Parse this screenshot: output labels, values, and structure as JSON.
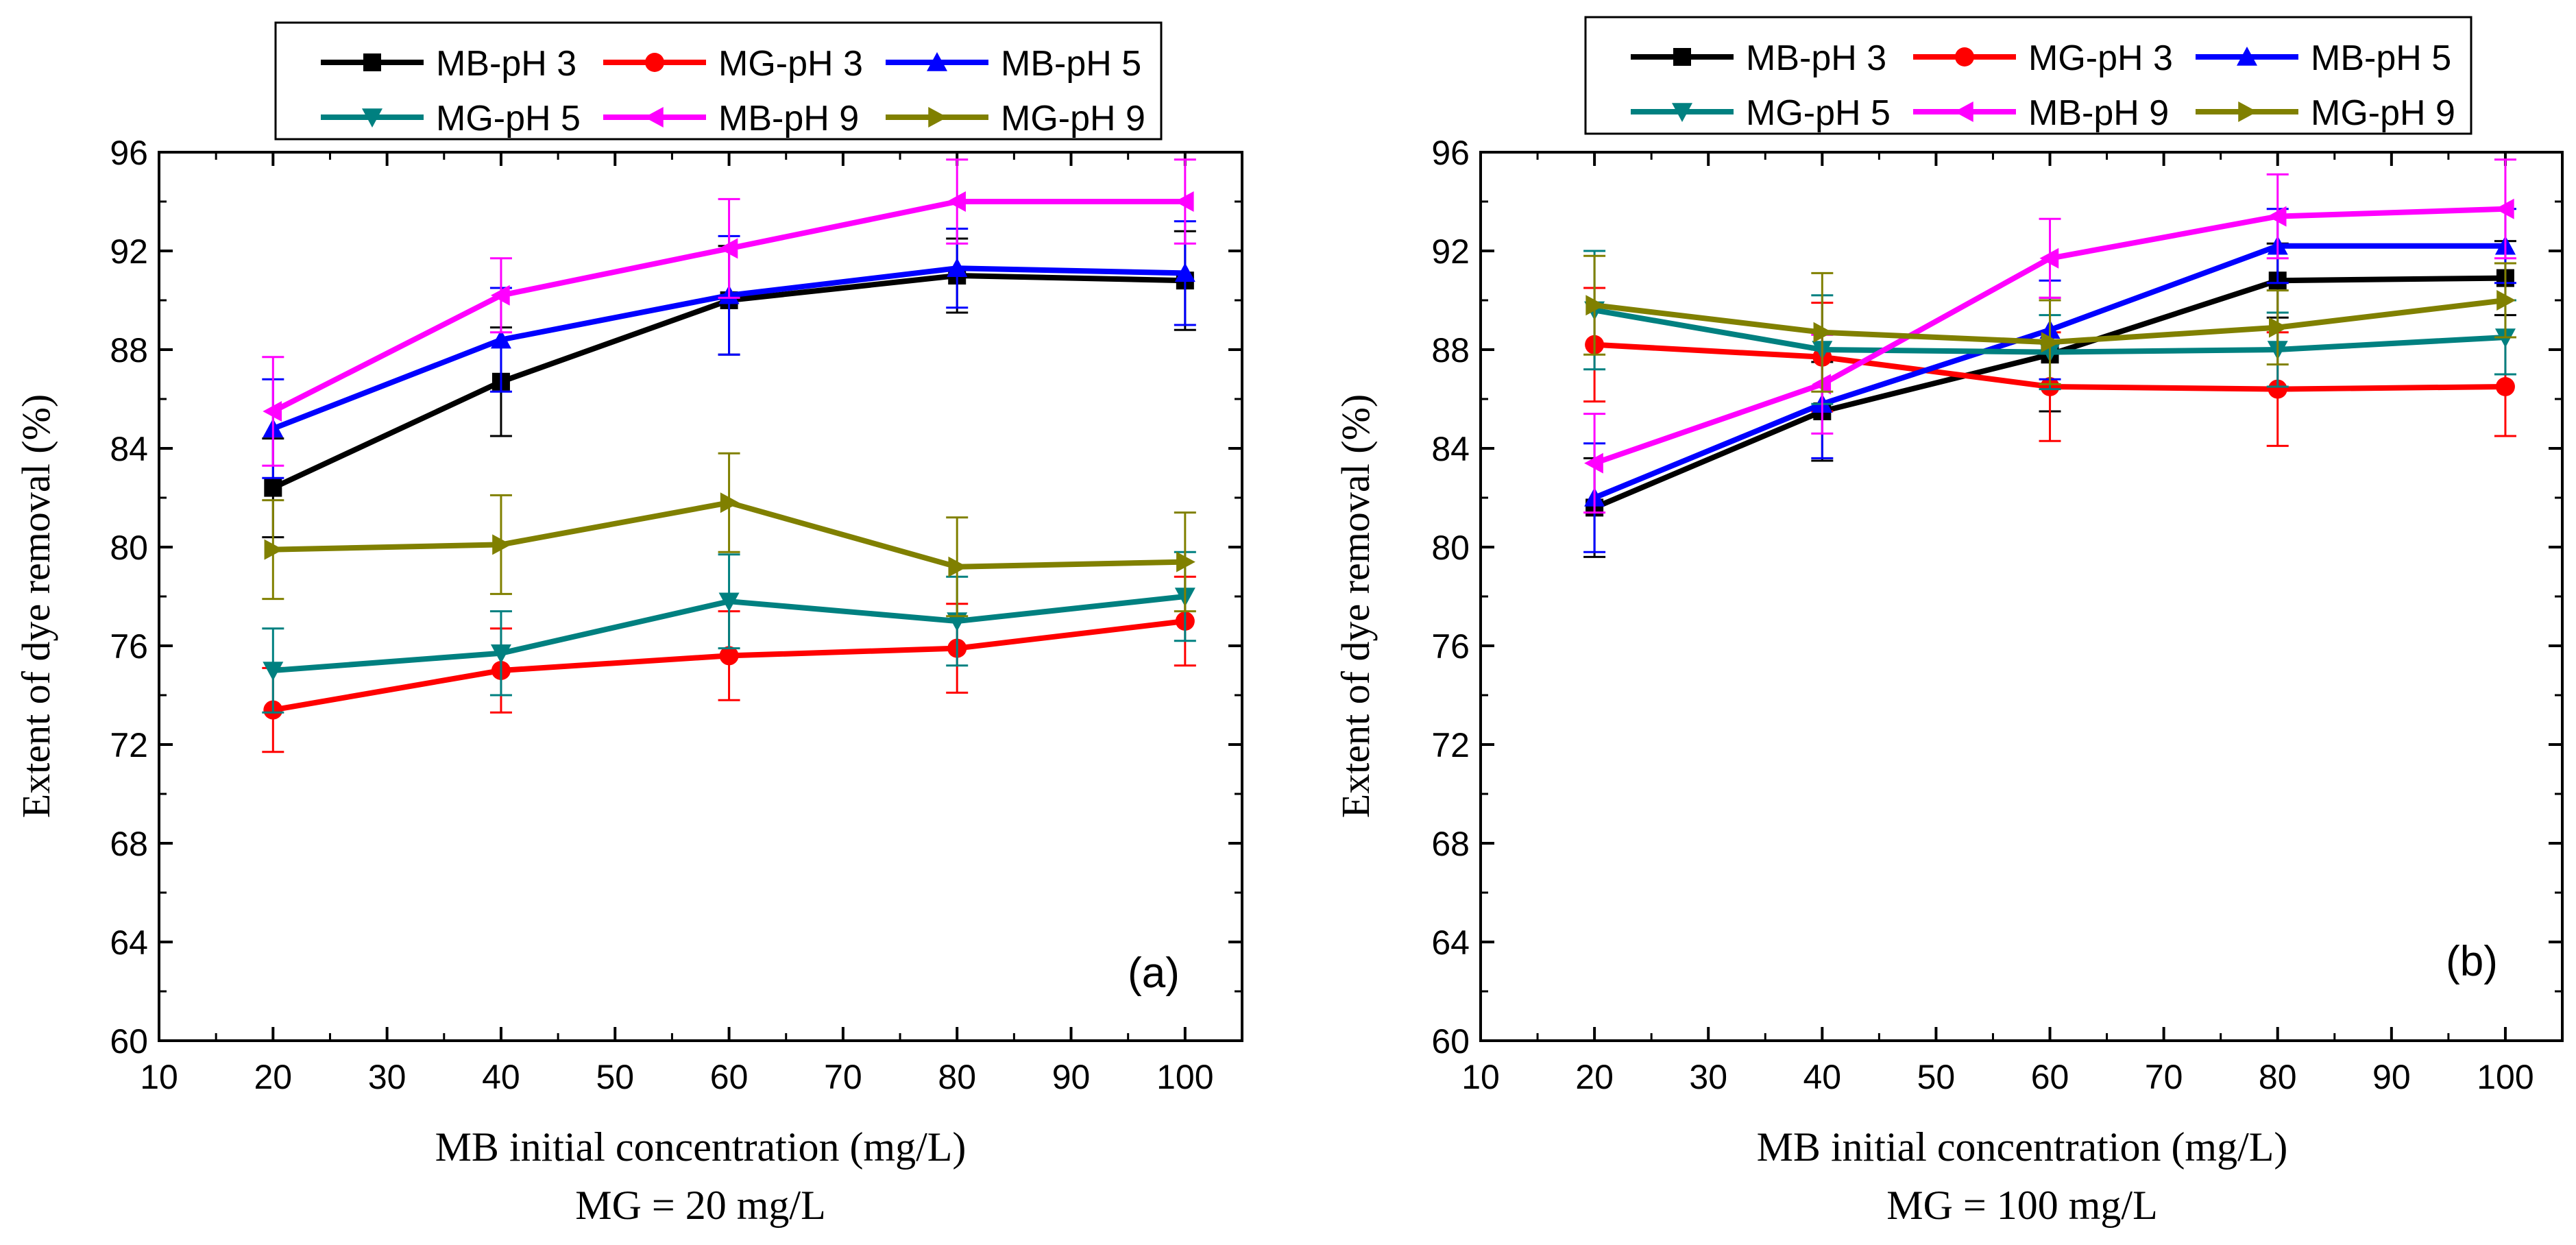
{
  "chart_data": [
    {
      "type": "line",
      "panel_label": "(a)",
      "xlabel": "MB initial concentration (mg/L)",
      "subtitle": "MG = 20 mg/L",
      "ylabel": "Extent of dye removal (%)",
      "xlim": [
        10,
        105
      ],
      "ylim": [
        60,
        96
      ],
      "xticks": [
        10,
        20,
        30,
        40,
        50,
        60,
        70,
        80,
        90,
        100
      ],
      "yticks": [
        60,
        64,
        68,
        72,
        76,
        80,
        84,
        88,
        92,
        96
      ],
      "x": [
        20,
        40,
        60,
        80,
        100
      ],
      "series": [
        {
          "name": "MB-pH 3",
          "marker": "square",
          "color": "#000000",
          "values": [
            82.4,
            86.7,
            90.0,
            91.0,
            90.8
          ],
          "errors": [
            2.0,
            2.2,
            2.2,
            1.5,
            2.0
          ]
        },
        {
          "name": "MG-pH 3",
          "marker": "circle",
          "color": "#ff0000",
          "values": [
            73.4,
            75.0,
            75.6,
            75.9,
            77.0
          ],
          "errors": [
            1.7,
            1.7,
            1.8,
            1.8,
            1.8
          ]
        },
        {
          "name": "MB-pH 5",
          "marker": "triangle-up",
          "color": "#0000ff",
          "values": [
            84.8,
            88.4,
            90.2,
            91.3,
            91.1
          ],
          "errors": [
            2.0,
            2.1,
            2.4,
            1.6,
            2.1
          ]
        },
        {
          "name": "MG-pH 5",
          "marker": "triangle-down",
          "color": "#008080",
          "values": [
            75.0,
            75.7,
            77.8,
            77.0,
            78.0
          ],
          "errors": [
            1.7,
            1.7,
            1.9,
            1.8,
            1.8
          ]
        },
        {
          "name": "MB-pH 9",
          "marker": "triangle-left",
          "color": "#ff00ff",
          "values": [
            85.5,
            90.2,
            92.1,
            94.0,
            94.0
          ],
          "errors": [
            2.2,
            1.5,
            2.0,
            1.7,
            1.7
          ]
        },
        {
          "name": "MG-pH 9",
          "marker": "triangle-right",
          "color": "#808000",
          "values": [
            79.9,
            80.1,
            81.8,
            79.2,
            79.4
          ],
          "errors": [
            2.0,
            2.0,
            2.0,
            2.0,
            2.0
          ]
        }
      ]
    },
    {
      "type": "line",
      "panel_label": "(b)",
      "xlabel": "MB initial concentration (mg/L)",
      "subtitle": "MG = 100 mg/L",
      "ylabel": "Extent of dye removal (%)",
      "xlim": [
        10,
        105
      ],
      "ylim": [
        60,
        96
      ],
      "xticks": [
        10,
        20,
        30,
        40,
        50,
        60,
        70,
        80,
        90,
        100
      ],
      "yticks": [
        60,
        64,
        68,
        72,
        76,
        80,
        84,
        88,
        92,
        96
      ],
      "x": [
        20,
        40,
        60,
        80,
        100
      ],
      "series": [
        {
          "name": "MB-pH 3",
          "marker": "square",
          "color": "#000000",
          "values": [
            81.6,
            85.5,
            87.8,
            90.8,
            90.9
          ],
          "errors": [
            2.0,
            2.0,
            2.3,
            1.5,
            1.5
          ]
        },
        {
          "name": "MG-pH 3",
          "marker": "circle",
          "color": "#ff0000",
          "values": [
            88.2,
            87.7,
            86.5,
            86.4,
            86.5
          ],
          "errors": [
            2.3,
            2.2,
            2.2,
            2.3,
            2.0
          ]
        },
        {
          "name": "MB-pH 5",
          "marker": "triangle-up",
          "color": "#0000ff",
          "values": [
            82.0,
            85.8,
            88.8,
            92.2,
            92.2
          ],
          "errors": [
            2.2,
            2.2,
            2.0,
            1.5,
            1.5
          ]
        },
        {
          "name": "MG-pH 5",
          "marker": "triangle-down",
          "color": "#008080",
          "values": [
            89.6,
            88.0,
            87.9,
            88.0,
            88.5
          ],
          "errors": [
            2.4,
            2.2,
            1.5,
            1.5,
            1.5
          ]
        },
        {
          "name": "MB-pH 9",
          "marker": "triangle-left",
          "color": "#ff00ff",
          "values": [
            83.4,
            86.6,
            91.7,
            93.4,
            93.7
          ],
          "errors": [
            2.0,
            2.0,
            1.6,
            1.7,
            2.0
          ]
        },
        {
          "name": "MG-pH 9",
          "marker": "triangle-right",
          "color": "#808000",
          "values": [
            89.8,
            88.7,
            88.3,
            88.9,
            90.0
          ],
          "errors": [
            2.0,
            2.4,
            1.7,
            1.5,
            1.5
          ]
        }
      ]
    }
  ]
}
